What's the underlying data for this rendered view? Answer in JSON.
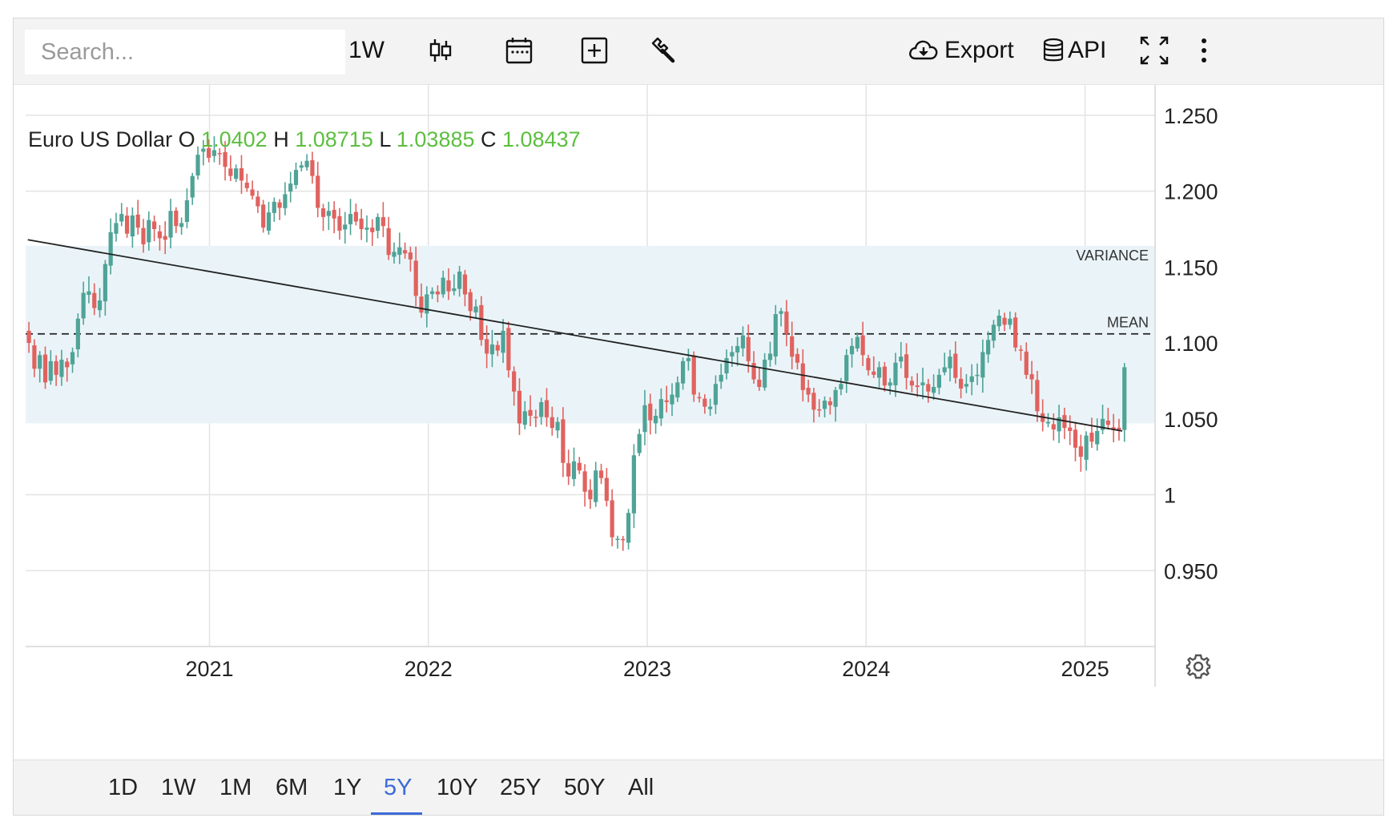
{
  "toolbar": {
    "search_placeholder": "Search...",
    "interval_label": "1W",
    "chart_type_icon": "candlestick-icon",
    "calendar_icon": "calendar-icon",
    "add_icon": "plus-square-icon",
    "tools_icon": "wrench-icon",
    "export_label": "Export",
    "api_label": "API",
    "fullscreen_icon": "expand-icon",
    "more_icon": "more-vertical-icon"
  },
  "legend": {
    "name": "Euro US Dollar",
    "o_label": "O",
    "o_value": "1.0402",
    "h_label": "H",
    "h_value": "1.08715",
    "l_label": "L",
    "l_value": "1.03885",
    "c_label": "C",
    "c_value": "1.08437"
  },
  "ranges": [
    "1D",
    "1W",
    "1M",
    "6M",
    "1Y",
    "5Y",
    "10Y",
    "25Y",
    "50Y",
    "All"
  ],
  "active_range": "5Y",
  "colors": {
    "up": "#4fa397",
    "down": "#e0625f",
    "legend_value": "#5cbf3f",
    "band": "#eaf4f8",
    "active": "#3b6bd8"
  },
  "chart_data": {
    "type": "candlestick",
    "series_name": "Euro US Dollar",
    "interval": "1W",
    "x_ticks": [
      "2021",
      "2022",
      "2023",
      "2024",
      "2025"
    ],
    "x_range": [
      2020.16,
      2025.32
    ],
    "y_ticks": [
      {
        "value": 1.25,
        "label": "1.250"
      },
      {
        "value": 1.2,
        "label": "1.200"
      },
      {
        "value": 1.15,
        "label": "1.150"
      },
      {
        "value": 1.1,
        "label": "1.100"
      },
      {
        "value": 1.05,
        "label": "1.050"
      },
      {
        "value": 1.0,
        "label": "1"
      },
      {
        "value": 0.95,
        "label": "0.950"
      }
    ],
    "y_range": [
      0.9,
      1.27
    ],
    "grid": true,
    "annotations": [
      {
        "label": "VARIANCE",
        "type": "band",
        "y_range": [
          1.047,
          1.164
        ]
      },
      {
        "label": "MEAN",
        "type": "dashed-line",
        "y": 1.106
      }
    ],
    "trend_line": {
      "from": {
        "x": 2020.17,
        "y": 1.168
      },
      "to": {
        "x": 2025.17,
        "y": 1.042
      }
    },
    "closes": [
      1.1,
      1.083,
      1.092,
      1.074,
      1.088,
      1.079,
      1.089,
      1.084,
      1.094,
      1.116,
      1.133,
      1.134,
      1.123,
      1.128,
      1.152,
      1.173,
      1.179,
      1.185,
      1.172,
      1.184,
      1.176,
      1.165,
      1.181,
      1.175,
      1.169,
      1.168,
      1.187,
      1.177,
      1.179,
      1.194,
      1.21,
      1.224,
      1.228,
      1.222,
      1.227,
      1.225,
      1.216,
      1.21,
      1.215,
      1.207,
      1.202,
      1.197,
      1.19,
      1.176,
      1.186,
      1.193,
      1.189,
      1.198,
      1.205,
      1.214,
      1.217,
      1.22,
      1.21,
      1.189,
      1.183,
      1.187,
      1.182,
      1.174,
      1.178,
      1.185,
      1.18,
      1.175,
      1.176,
      1.173,
      1.183,
      1.177,
      1.158,
      1.16,
      1.163,
      1.159,
      1.155,
      1.131,
      1.12,
      1.132,
      1.134,
      1.132,
      1.143,
      1.134,
      1.136,
      1.147,
      1.132,
      1.121,
      1.124,
      1.102,
      1.093,
      1.099,
      1.095,
      1.108,
      1.082,
      1.068,
      1.047,
      1.055,
      1.052,
      1.051,
      1.061,
      1.051,
      1.044,
      1.048,
      1.021,
      1.012,
      1.022,
      1.016,
      1.002,
      0.997,
      1.016,
      1.011,
      0.996,
      0.972,
      0.971,
      0.97,
      0.988,
      1.026,
      1.04,
      1.059,
      1.049,
      1.052,
      1.063,
      1.061,
      1.066,
      1.074,
      1.088,
      1.09,
      1.066,
      1.064,
      1.058,
      1.058,
      1.073,
      1.079,
      1.09,
      1.094,
      1.098,
      1.105,
      1.088,
      1.076,
      1.071,
      1.089,
      1.093,
      1.119,
      1.121,
      1.106,
      1.091,
      1.087,
      1.069,
      1.066,
      1.056,
      1.056,
      1.062,
      1.059,
      1.069,
      1.073,
      1.092,
      1.098,
      1.104,
      1.092,
      1.082,
      1.079,
      1.084,
      1.072,
      1.074,
      1.087,
      1.091,
      1.077,
      1.072,
      1.071,
      1.074,
      1.068,
      1.071,
      1.079,
      1.084,
      1.091,
      1.077,
      1.07,
      1.073,
      1.078,
      1.079,
      1.094,
      1.102,
      1.112,
      1.118,
      1.112,
      1.116,
      1.097,
      1.095,
      1.079,
      1.076,
      1.055,
      1.048,
      1.048,
      1.043,
      1.051,
      1.044,
      1.042,
      1.031,
      1.025,
      1.039,
      1.035,
      1.042,
      1.05,
      1.046,
      1.043,
      1.042,
      1.084
    ]
  }
}
